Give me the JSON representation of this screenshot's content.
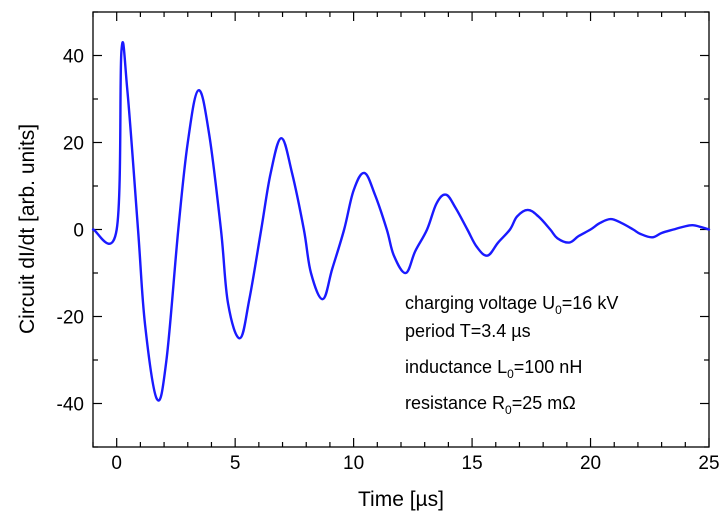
{
  "chart_data": {
    "type": "line",
    "xlabel": "Time [µs]",
    "ylabel": "Circuit dI/dt [arb. units]",
    "xlim": [
      -1,
      25
    ],
    "ylim": [
      -50,
      50
    ],
    "xticks": [
      0,
      5,
      10,
      15,
      20,
      25
    ],
    "yticks": [
      -40,
      -20,
      0,
      20,
      40
    ],
    "xtick_labels": [
      "0",
      "5",
      "10",
      "15",
      "20",
      "25"
    ],
    "ytick_labels": [
      "-40",
      "-20",
      "0",
      "20",
      "40"
    ],
    "grid": false,
    "legend": "none",
    "line_color": "#1a1aff",
    "series": [
      {
        "x": [
          -1,
          0,
          0.2,
          0.45,
          0.9,
          1.2,
          1.7,
          2.1,
          2.6,
          3.0,
          3.45,
          3.9,
          4.4,
          4.7,
          5.2,
          5.6,
          6.1,
          6.5,
          6.95,
          7.4,
          7.9,
          8.2,
          8.7,
          9.1,
          9.6,
          10.0,
          10.45,
          10.9,
          11.4,
          11.7,
          12.2,
          12.6,
          13.1,
          13.5,
          13.9,
          14.3,
          14.8,
          15.2,
          15.65,
          16.1,
          16.6,
          16.9,
          17.35,
          17.8,
          18.3,
          18.6,
          19.1,
          19.5,
          20.0,
          20.4,
          20.85,
          21.3,
          21.8,
          22.1,
          22.6,
          23.0,
          23.5,
          23.9,
          24.3,
          24.7,
          25.0
        ],
        "y": [
          0,
          0,
          41,
          32,
          0,
          -22,
          -39,
          -30,
          0,
          20,
          32,
          22,
          0,
          -17,
          -25,
          -16,
          0,
          13,
          21,
          13,
          0,
          -10,
          -16,
          -9,
          0,
          9,
          13,
          8,
          0,
          -6,
          -10,
          -5,
          0,
          6,
          8,
          5,
          0,
          -4,
          -6,
          -3,
          0,
          3,
          4.5,
          3,
          0,
          -2,
          -3,
          -1.5,
          0,
          1.5,
          2.4,
          1.5,
          0,
          -1,
          -1.8,
          -0.8,
          0,
          0.6,
          1.0,
          0.5,
          0
        ]
      }
    ]
  },
  "annotations": {
    "line1": {
      "prefix": "charging voltage U",
      "sub": "0",
      "suffix": "=16 kV"
    },
    "line2": {
      "text": "period T=3.4 µs"
    },
    "line3": {
      "prefix": "inductance L",
      "sub": "0",
      "suffix": "=100 nH"
    },
    "line4": {
      "prefix": "resistance R",
      "sub": "0",
      "suffix": "=25 mΩ"
    }
  }
}
